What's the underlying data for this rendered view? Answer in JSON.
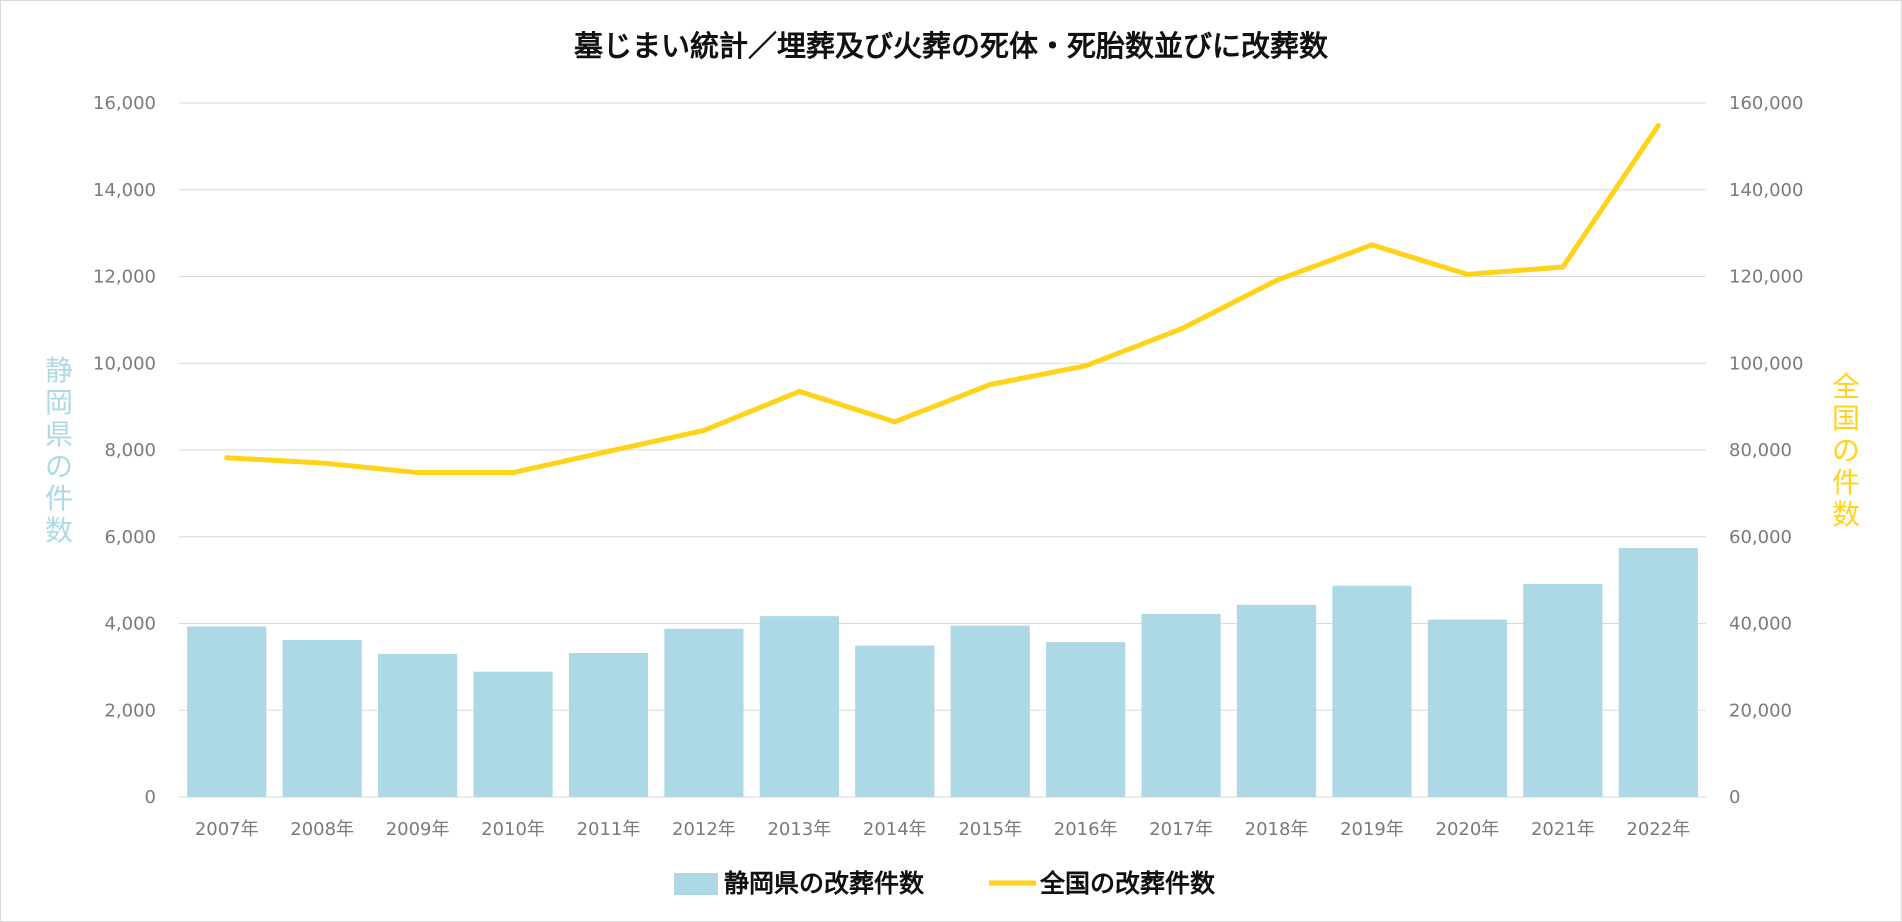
{
  "chart_data": {
    "type": "bar+line",
    "title": "墓じまい統計／埋葬及び火葬の死体・死胎数並びに改葬数",
    "categories": [
      "2007年",
      "2008年",
      "2009年",
      "2010年",
      "2011年",
      "2012年",
      "2013年",
      "2014年",
      "2015年",
      "2016年",
      "2017年",
      "2018年",
      "2019年",
      "2020年",
      "2021年",
      "2022年"
    ],
    "series": [
      {
        "name": "静岡県の改葬件数",
        "type": "bar",
        "axis": "left",
        "color": "#add8e6",
        "values": [
          3930,
          3620,
          3300,
          2890,
          3320,
          3880,
          4170,
          3490,
          3950,
          3570,
          4220,
          4430,
          4870,
          4090,
          4910,
          5740
        ]
      },
      {
        "name": "全国の改葬件数",
        "type": "line",
        "axis": "right",
        "color": "#ffd319",
        "values": [
          78200,
          77000,
          74800,
          74800,
          79700,
          84500,
          93500,
          86500,
          95100,
          99400,
          107900,
          119100,
          127300,
          120500,
          122200,
          154800
        ]
      }
    ],
    "y_left": {
      "label": "静岡県の件数",
      "color": "#add8e6",
      "ylim": [
        0,
        16000
      ],
      "ticks": [
        "0",
        "2,000",
        "4,000",
        "6,000",
        "8,000",
        "10,000",
        "12,000",
        "14,000",
        "16,000"
      ]
    },
    "y_right": {
      "label": "全国の件数",
      "color": "#ffd319",
      "ylim": [
        0,
        160000
      ],
      "ticks": [
        "0",
        "20,000",
        "40,000",
        "60,000",
        "80,000",
        "100,000",
        "120,000",
        "140,000",
        "160,000"
      ]
    },
    "grid": true,
    "legend_position": "bottom"
  }
}
